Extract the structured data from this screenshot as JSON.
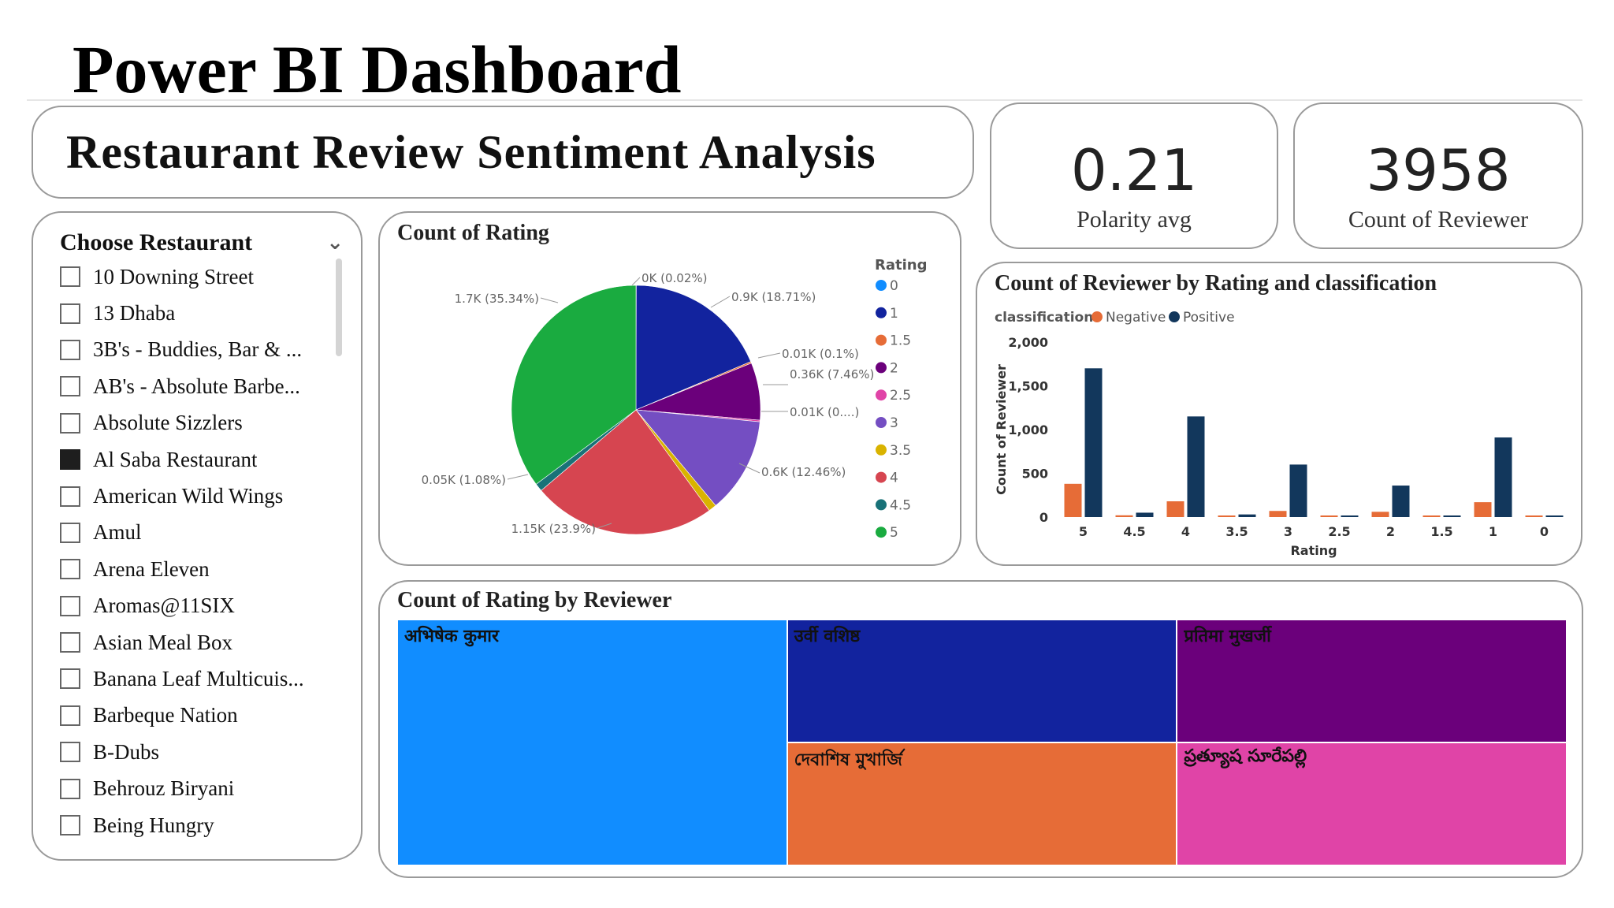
{
  "page": {
    "title": "Power BI Dashboard"
  },
  "report": {
    "title": "Restaurant Review Sentiment Analysis"
  },
  "kpis": {
    "polarity": {
      "value": "0.21",
      "label": "Polarity avg"
    },
    "reviewers": {
      "value": "3958",
      "label": "Count of Reviewer"
    }
  },
  "slicer": {
    "title": "Choose Restaurant",
    "items": [
      {
        "label": "10 Downing Street",
        "checked": false
      },
      {
        "label": "13 Dhaba",
        "checked": false
      },
      {
        "label": "3B's - Buddies, Bar & ...",
        "checked": false
      },
      {
        "label": "AB's - Absolute Barbe...",
        "checked": false
      },
      {
        "label": "Absolute Sizzlers",
        "checked": false
      },
      {
        "label": "Al Saba Restaurant",
        "checked": true
      },
      {
        "label": "American Wild Wings",
        "checked": false
      },
      {
        "label": "Amul",
        "checked": false
      },
      {
        "label": "Arena Eleven",
        "checked": false
      },
      {
        "label": "Aromas@11SIX",
        "checked": false
      },
      {
        "label": "Asian Meal Box",
        "checked": false
      },
      {
        "label": "Banana Leaf Multicuis...",
        "checked": false
      },
      {
        "label": "Barbeque Nation",
        "checked": false
      },
      {
        "label": "B-Dubs",
        "checked": false
      },
      {
        "label": "Behrouz Biryani",
        "checked": false
      },
      {
        "label": "Being Hungry",
        "checked": false
      }
    ]
  },
  "chart_data": [
    {
      "type": "pie",
      "title": "Count of Rating",
      "legend_title": "Rating",
      "legend_position": "right",
      "slices": [
        {
          "category": "0",
          "value": 0.002,
          "share": "0.02%",
          "label": "0K (0.02%)",
          "color": "#118DFF"
        },
        {
          "category": "1",
          "value": 0.9,
          "share": "18.71%",
          "label": "0.9K (18.71%)",
          "color": "#12239E"
        },
        {
          "category": "1.5",
          "value": 0.01,
          "share": "0.1%",
          "label": "0.01K (0.1%)",
          "color": "#E66C37"
        },
        {
          "category": "2",
          "value": 0.36,
          "share": "7.46%",
          "label": "0.36K (7.46%)",
          "color": "#6B007B"
        },
        {
          "category": "2.5",
          "value": 0.01,
          "share": "0....",
          "label": "0.01K (0....)",
          "color": "#E044A7"
        },
        {
          "category": "3",
          "value": 0.6,
          "share": "12.46%",
          "label": "0.6K (12.46%)",
          "color": "#744EC2"
        },
        {
          "category": "3.5",
          "value": 0.05,
          "share": "1.08%",
          "label": "",
          "color": "#D9B300"
        },
        {
          "category": "4",
          "value": 1.15,
          "share": "23.9%",
          "label": "1.15K (23.9%)",
          "color": "#D64550"
        },
        {
          "category": "4.5",
          "value": 0.05,
          "share": "1.08%",
          "label": "0.05K (1.08%)",
          "color": "#197278"
        },
        {
          "category": "5",
          "value": 1.7,
          "share": "35.34%",
          "label": "1.7K (35.34%)",
          "color": "#1AAB40"
        }
      ]
    },
    {
      "type": "bar",
      "title": "Count of Reviewer by Rating and classification",
      "legend_title": "classification",
      "legend_position": "top-left",
      "xlabel": "Rating",
      "ylabel": "Count of Reviewer",
      "ylim": [
        0,
        2000
      ],
      "yticks": [
        0,
        500,
        1000,
        1500,
        2000
      ],
      "ytick_labels": [
        "0",
        "500",
        "1,000",
        "1,500",
        "2,000"
      ],
      "categories": [
        "5",
        "4.5",
        "4",
        "3.5",
        "3",
        "2.5",
        "2",
        "1.5",
        "1",
        "0"
      ],
      "series": [
        {
          "name": "Negative",
          "color": "#E66C37",
          "values": [
            380,
            20,
            180,
            10,
            70,
            10,
            60,
            10,
            170,
            0
          ]
        },
        {
          "name": "Positive",
          "color": "#12375C",
          "values": [
            1700,
            50,
            1150,
            30,
            600,
            10,
            360,
            10,
            910,
            15
          ]
        }
      ]
    },
    {
      "type": "treemap",
      "title": "Count of Rating by Reviewer",
      "tiles": [
        {
          "name": "अभिषेक कुमार",
          "color": "#118DFF"
        },
        {
          "name": "उर्वी वशिष्ठ",
          "color": "#12239E"
        },
        {
          "name": "प्रतिमा मुखर्जी",
          "color": "#6B007B"
        },
        {
          "name": "দেবাশিষ মুখার্জি",
          "color": "#E66C37"
        },
        {
          "name": "ప్రత్యూష సూరేపల్లి",
          "color": "#E044A7"
        }
      ]
    }
  ]
}
